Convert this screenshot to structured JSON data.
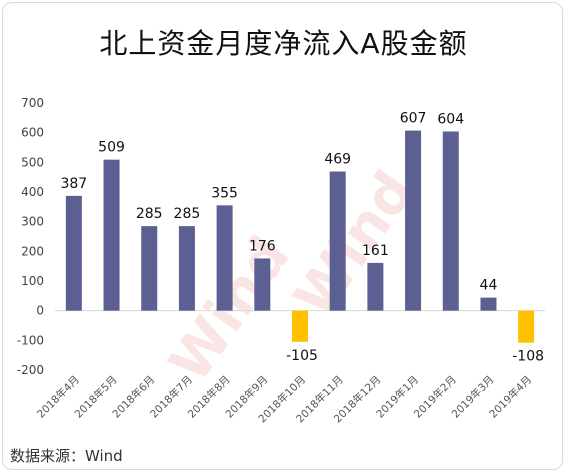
{
  "title": "北上资金月度净流入A股金额",
  "source": "数据来源：Wind",
  "watermark": "Wind",
  "colors": {
    "positive": "#5b5f92",
    "negative": "#ffc000",
    "gridline": "#d9d9d9"
  },
  "chart_data": {
    "type": "bar",
    "title": "北上资金月度净流入A股金额",
    "categories": [
      "2018年4月",
      "2018年5月",
      "2018年6月",
      "2018年7月",
      "2018年8月",
      "2018年9月",
      "2018年10月",
      "2018年11月",
      "2018年12月",
      "2019年1月",
      "2019年2月",
      "2019年3月",
      "2019年4月"
    ],
    "values": [
      387,
      509,
      285,
      285,
      355,
      176,
      -105,
      469,
      161,
      607,
      604,
      44,
      -108
    ],
    "ylim": [
      -200,
      700
    ],
    "yticks": [
      -200,
      -100,
      0,
      100,
      200,
      300,
      400,
      500,
      600,
      700
    ],
    "grid": false,
    "legend": "none"
  }
}
